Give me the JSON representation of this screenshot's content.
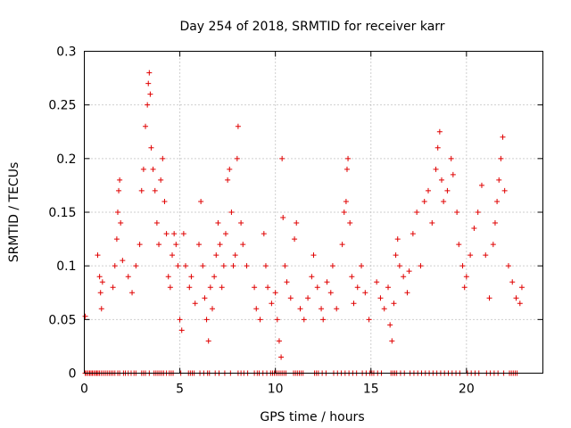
{
  "chart_data": {
    "type": "scatter",
    "title": "Day 254 of 2018, SRMTID for receiver karr",
    "xlabel": "GPS time / hours",
    "ylabel": "SRMTID / TECUs",
    "xlim": [
      0,
      24
    ],
    "ylim": [
      0,
      0.3
    ],
    "xticks": [
      0,
      5,
      10,
      15,
      20
    ],
    "xtick_labels": [
      "0",
      "5",
      "10",
      "15",
      "20"
    ],
    "yticks": [
      0,
      0.05,
      0.1,
      0.15,
      0.2,
      0.25,
      0.3
    ],
    "ytick_labels": [
      "0",
      "0.05",
      "0.1",
      "0.15",
      "0.2",
      "0.25",
      "0.3"
    ],
    "grid": true,
    "marker": "+",
    "marker_color": "#e00000",
    "series": [
      {
        "name": "SRMTID",
        "points": [
          [
            0.05,
            0.053
          ],
          [
            0.7,
            0.11
          ],
          [
            0.8,
            0.09
          ],
          [
            0.85,
            0.075
          ],
          [
            0.9,
            0.06
          ],
          [
            0.95,
            0.085
          ],
          [
            1.5,
            0.08
          ],
          [
            1.6,
            0.1
          ],
          [
            1.7,
            0.125
          ],
          [
            1.75,
            0.15
          ],
          [
            1.8,
            0.17
          ],
          [
            1.85,
            0.18
          ],
          [
            1.9,
            0.14
          ],
          [
            2.0,
            0.105
          ],
          [
            2.3,
            0.09
          ],
          [
            2.5,
            0.075
          ],
          [
            2.7,
            0.1
          ],
          [
            2.9,
            0.12
          ],
          [
            3.0,
            0.17
          ],
          [
            3.1,
            0.19
          ],
          [
            3.2,
            0.23
          ],
          [
            3.3,
            0.25
          ],
          [
            3.35,
            0.27
          ],
          [
            3.4,
            0.28
          ],
          [
            3.45,
            0.26
          ],
          [
            3.5,
            0.21
          ],
          [
            3.6,
            0.19
          ],
          [
            3.7,
            0.17
          ],
          [
            3.8,
            0.14
          ],
          [
            3.9,
            0.12
          ],
          [
            4.0,
            0.18
          ],
          [
            4.1,
            0.2
          ],
          [
            4.2,
            0.16
          ],
          [
            4.3,
            0.13
          ],
          [
            4.4,
            0.09
          ],
          [
            4.5,
            0.08
          ],
          [
            4.6,
            0.11
          ],
          [
            4.7,
            0.13
          ],
          [
            4.8,
            0.12
          ],
          [
            4.9,
            0.1
          ],
          [
            5.0,
            0.05
          ],
          [
            5.1,
            0.04
          ],
          [
            5.2,
            0.13
          ],
          [
            5.3,
            0.1
          ],
          [
            5.5,
            0.08
          ],
          [
            5.6,
            0.09
          ],
          [
            5.8,
            0.065
          ],
          [
            6.0,
            0.12
          ],
          [
            6.1,
            0.16
          ],
          [
            6.2,
            0.1
          ],
          [
            6.3,
            0.07
          ],
          [
            6.4,
            0.05
          ],
          [
            6.5,
            0.03
          ],
          [
            6.6,
            0.08
          ],
          [
            6.7,
            0.06
          ],
          [
            6.8,
            0.09
          ],
          [
            6.9,
            0.11
          ],
          [
            7.0,
            0.14
          ],
          [
            7.1,
            0.12
          ],
          [
            7.2,
            0.08
          ],
          [
            7.3,
            0.1
          ],
          [
            7.4,
            0.13
          ],
          [
            7.5,
            0.18
          ],
          [
            7.6,
            0.19
          ],
          [
            7.7,
            0.15
          ],
          [
            7.8,
            0.1
          ],
          [
            7.9,
            0.11
          ],
          [
            8.0,
            0.2
          ],
          [
            8.05,
            0.23
          ],
          [
            8.2,
            0.14
          ],
          [
            8.3,
            0.12
          ],
          [
            8.5,
            0.1
          ],
          [
            8.9,
            0.08
          ],
          [
            9.0,
            0.06
          ],
          [
            9.2,
            0.05
          ],
          [
            9.4,
            0.13
          ],
          [
            9.5,
            0.1
          ],
          [
            9.6,
            0.08
          ],
          [
            9.8,
            0.065
          ],
          [
            10.0,
            0.075
          ],
          [
            10.1,
            0.05
          ],
          [
            10.2,
            0.03
          ],
          [
            10.3,
            0.015
          ],
          [
            10.35,
            0.2
          ],
          [
            10.4,
            0.145
          ],
          [
            10.5,
            0.1
          ],
          [
            10.6,
            0.085
          ],
          [
            10.8,
            0.07
          ],
          [
            11.0,
            0.125
          ],
          [
            11.1,
            0.14
          ],
          [
            11.3,
            0.06
          ],
          [
            11.5,
            0.05
          ],
          [
            11.7,
            0.07
          ],
          [
            11.9,
            0.09
          ],
          [
            12.0,
            0.11
          ],
          [
            12.2,
            0.08
          ],
          [
            12.4,
            0.06
          ],
          [
            12.5,
            0.05
          ],
          [
            12.7,
            0.085
          ],
          [
            12.9,
            0.075
          ],
          [
            13.0,
            0.1
          ],
          [
            13.2,
            0.06
          ],
          [
            13.5,
            0.12
          ],
          [
            13.6,
            0.15
          ],
          [
            13.7,
            0.16
          ],
          [
            13.75,
            0.19
          ],
          [
            13.8,
            0.2
          ],
          [
            13.9,
            0.14
          ],
          [
            14.0,
            0.09
          ],
          [
            14.1,
            0.065
          ],
          [
            14.3,
            0.08
          ],
          [
            14.5,
            0.1
          ],
          [
            14.7,
            0.075
          ],
          [
            14.9,
            0.05
          ],
          [
            15.3,
            0.085
          ],
          [
            15.5,
            0.07
          ],
          [
            15.7,
            0.06
          ],
          [
            15.9,
            0.08
          ],
          [
            16.0,
            0.045
          ],
          [
            16.1,
            0.03
          ],
          [
            16.2,
            0.065
          ],
          [
            16.3,
            0.11
          ],
          [
            16.4,
            0.125
          ],
          [
            16.5,
            0.1
          ],
          [
            16.7,
            0.09
          ],
          [
            16.9,
            0.075
          ],
          [
            17.0,
            0.095
          ],
          [
            17.2,
            0.13
          ],
          [
            17.4,
            0.15
          ],
          [
            17.6,
            0.1
          ],
          [
            17.8,
            0.16
          ],
          [
            18.0,
            0.17
          ],
          [
            18.2,
            0.14
          ],
          [
            18.4,
            0.19
          ],
          [
            18.5,
            0.21
          ],
          [
            18.6,
            0.225
          ],
          [
            18.7,
            0.18
          ],
          [
            18.8,
            0.16
          ],
          [
            19.0,
            0.17
          ],
          [
            19.2,
            0.2
          ],
          [
            19.3,
            0.185
          ],
          [
            19.5,
            0.15
          ],
          [
            19.6,
            0.12
          ],
          [
            19.8,
            0.1
          ],
          [
            19.9,
            0.08
          ],
          [
            20.0,
            0.09
          ],
          [
            20.2,
            0.11
          ],
          [
            20.4,
            0.135
          ],
          [
            20.6,
            0.15
          ],
          [
            20.8,
            0.175
          ],
          [
            21.0,
            0.11
          ],
          [
            21.2,
            0.07
          ],
          [
            21.4,
            0.12
          ],
          [
            21.5,
            0.14
          ],
          [
            21.6,
            0.16
          ],
          [
            21.7,
            0.18
          ],
          [
            21.8,
            0.2
          ],
          [
            21.9,
            0.22
          ],
          [
            22.0,
            0.17
          ],
          [
            22.2,
            0.1
          ],
          [
            22.4,
            0.085
          ],
          [
            22.6,
            0.07
          ],
          [
            22.8,
            0.065
          ],
          [
            22.9,
            0.08
          ]
        ],
        "zero_points": [
          0.05,
          0.12,
          0.2,
          0.28,
          0.35,
          0.42,
          0.5,
          0.58,
          0.65,
          0.72,
          0.8,
          0.9,
          1.0,
          1.1,
          1.2,
          1.3,
          1.4,
          1.5,
          1.6,
          1.75,
          1.85,
          2.05,
          2.15,
          2.3,
          2.45,
          2.6,
          2.7,
          3.0,
          3.1,
          3.2,
          3.4,
          3.65,
          3.75,
          3.85,
          3.95,
          4.05,
          4.15,
          4.3,
          4.45,
          4.55,
          4.65,
          5.05,
          5.45,
          5.55,
          5.65,
          5.75,
          6.05,
          6.25,
          6.45,
          6.55,
          6.85,
          7.05,
          7.35,
          7.65,
          8.05,
          8.2,
          8.35,
          8.55,
          8.9,
          9.05,
          9.15,
          9.35,
          9.55,
          9.75,
          9.85,
          9.95,
          10.05,
          10.15,
          10.25,
          10.35,
          10.45,
          10.55,
          10.95,
          11.05,
          11.15,
          11.25,
          11.35,
          11.45,
          12.05,
          12.15,
          12.25,
          12.45,
          12.65,
          13.05,
          13.25,
          13.45,
          13.65,
          13.85,
          14.05,
          14.25,
          14.55,
          14.75,
          14.95,
          15.05,
          15.15,
          15.35,
          15.55,
          16.05,
          16.15,
          16.25,
          16.35,
          16.55,
          16.75,
          17.05,
          17.25,
          17.45,
          17.65,
          17.85,
          18.05,
          18.25,
          18.45,
          18.65,
          18.85,
          19.05,
          19.25,
          19.45,
          19.65,
          20.05,
          20.25,
          20.45,
          20.65,
          21.05,
          21.25,
          21.45,
          21.65,
          21.95,
          22.25,
          22.35,
          22.45,
          22.55,
          22.65
        ]
      }
    ]
  }
}
